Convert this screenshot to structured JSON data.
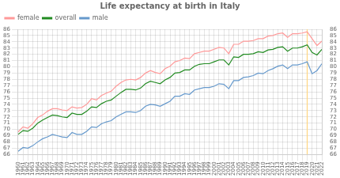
{
  "chart_data": {
    "type": "line",
    "title": "Life expectancy at birth in Italy",
    "x": [
      1960,
      1961,
      1962,
      1963,
      1964,
      1965,
      1966,
      1967,
      1968,
      1969,
      1970,
      1971,
      1972,
      1973,
      1974,
      1975,
      1976,
      1977,
      1978,
      1979,
      1980,
      1981,
      1982,
      1983,
      1984,
      1985,
      1986,
      1987,
      1988,
      1989,
      1990,
      1991,
      1992,
      1993,
      1994,
      1995,
      1996,
      1997,
      1998,
      1999,
      2000,
      2001,
      2002,
      2003,
      2004,
      2005,
      2006,
      2007,
      2008,
      2009,
      2010,
      2011,
      2012,
      2013,
      2014,
      2015,
      2016,
      2017,
      2018,
      2019,
      2020,
      2021,
      2022
    ],
    "series": [
      {
        "name": "female",
        "color": "#FF9999",
        "values": [
          69.6,
          70.4,
          70.2,
          70.9,
          71.9,
          72.3,
          72.9,
          73.3,
          73.3,
          73.1,
          73.0,
          73.6,
          73.4,
          73.5,
          74.0,
          74.9,
          74.7,
          75.4,
          75.8,
          76.1,
          76.9,
          77.5,
          77.9,
          78.0,
          77.9,
          78.3,
          79.0,
          79.4,
          79.1,
          78.9,
          79.7,
          80.1,
          80.8,
          81.0,
          81.4,
          81.3,
          82.1,
          82.3,
          82.5,
          82.5,
          82.8,
          83.1,
          83.0,
          82.1,
          83.6,
          83.6,
          84.1,
          84.1,
          84.2,
          84.5,
          84.5,
          84.9,
          85.0,
          85.3,
          85.4,
          84.7,
          85.3,
          85.3,
          85.4,
          85.6,
          84.5,
          83.4,
          84.1
        ]
      },
      {
        "name": "overall",
        "color": "#228B22",
        "values": [
          69.2,
          69.8,
          69.7,
          70.2,
          71.0,
          71.5,
          71.9,
          72.3,
          72.2,
          72.0,
          71.9,
          72.6,
          72.4,
          72.4,
          72.9,
          73.6,
          73.5,
          74.1,
          74.5,
          74.7,
          75.3,
          75.9,
          76.4,
          76.4,
          76.3,
          76.6,
          77.3,
          77.7,
          77.5,
          77.3,
          77.9,
          78.3,
          79.0,
          79.1,
          79.5,
          79.5,
          80.1,
          80.4,
          80.5,
          80.5,
          80.8,
          81.1,
          81.1,
          80.3,
          81.6,
          81.5,
          82.0,
          82.0,
          82.1,
          82.4,
          82.3,
          82.7,
          82.8,
          83.1,
          83.2,
          82.5,
          83.0,
          83.0,
          83.2,
          83.5,
          82.3,
          81.9,
          82.8
        ]
      },
      {
        "name": "male",
        "color": "#6699CC",
        "values": [
          66.5,
          67.1,
          67.0,
          67.4,
          68.0,
          68.5,
          68.8,
          69.2,
          69.0,
          68.8,
          68.7,
          69.5,
          69.2,
          69.2,
          69.7,
          70.4,
          70.3,
          70.9,
          71.2,
          71.4,
          72.0,
          72.4,
          72.8,
          72.8,
          72.7,
          73.0,
          73.7,
          74.0,
          73.9,
          73.7,
          74.1,
          74.5,
          75.3,
          75.3,
          75.7,
          75.6,
          76.3,
          76.5,
          76.7,
          76.7,
          76.9,
          77.3,
          77.2,
          76.5,
          77.8,
          77.8,
          78.3,
          78.4,
          78.6,
          79.0,
          78.9,
          79.4,
          79.7,
          80.1,
          80.3,
          79.7,
          80.3,
          80.3,
          80.5,
          80.8,
          78.9,
          79.4,
          80.5
        ]
      }
    ],
    "xlim": [
      1960,
      2022
    ],
    "xticks": [
      1960,
      1961,
      1962,
      1963,
      1964,
      1965,
      1966,
      1967,
      1968,
      1969,
      1970,
      1971,
      1972,
      1973,
      1974,
      1975,
      1976,
      1977,
      1978,
      1979,
      1980,
      1981,
      1982,
      1983,
      1984,
      1985,
      1986,
      1987,
      1988,
      1989,
      1990,
      1991,
      1992,
      1993,
      1994,
      1995,
      1996,
      1997,
      1998,
      1999,
      2000,
      2001,
      2002,
      2003,
      2004,
      2005,
      2006,
      2007,
      2008,
      2009,
      2010,
      2011,
      2012,
      2013,
      2014,
      2015,
      2016,
      2017,
      2018,
      2019,
      2020,
      2021,
      2022
    ],
    "ylim": [
      66,
      86
    ],
    "yticks": [
      66,
      67,
      68,
      69,
      70,
      71,
      72,
      73,
      74,
      75,
      76,
      77,
      78,
      79,
      80,
      81,
      82,
      83,
      84,
      85,
      86
    ],
    "y2lim": [
      66,
      86
    ],
    "y2ticks": [
      66,
      67,
      68,
      69,
      70,
      71,
      72,
      73,
      74,
      75,
      76,
      77,
      78,
      79,
      80,
      81,
      82,
      83,
      84,
      85,
      86
    ],
    "vlines": [
      {
        "x": 2019,
        "color": "#FFD580"
      }
    ],
    "grid": true,
    "legend": "upper left"
  }
}
